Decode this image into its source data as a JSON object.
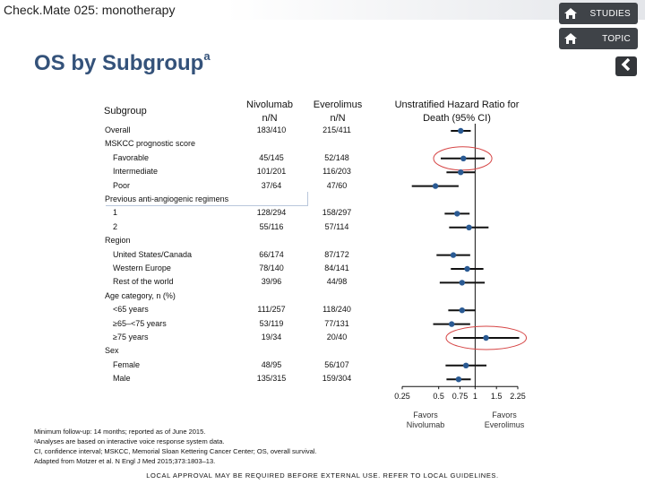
{
  "header": {
    "title": "Check.Mate 025: monotherapy"
  },
  "nav": {
    "studies": "STUDIES",
    "topic": "TOPIC"
  },
  "page": {
    "title": "OS by Subgroup",
    "title_sup": "a"
  },
  "columns": {
    "subgroup": "Subgroup",
    "nivo": "Nivolumab",
    "nivo_sub": "n/N",
    "eve": "Everolimus",
    "eve_sub": "n/N",
    "hr_title_1": "Unstratified Hazard Ratio for",
    "hr_title_2": "Death (95% CI)"
  },
  "chart_data": {
    "type": "forest",
    "x_scale": "log",
    "xlim": [
      0.25,
      2.25
    ],
    "x_ticks": [
      "0.25",
      "0.5",
      "0.75",
      "1",
      "1.5",
      "2.25"
    ],
    "reference_line": 1,
    "favors_left": "Favors Nivolumab",
    "favors_right": "Favors Everolimus",
    "marker_color": "#2a5a93",
    "highlight_color": "#d64545",
    "rows": [
      {
        "label": "Overall",
        "nivo": "183/410",
        "eve": "215/411",
        "hr": 0.76,
        "lo": 0.63,
        "hi": 0.92
      },
      {
        "label": "MSKCC prognostic score",
        "header": true
      },
      {
        "label": "Favorable",
        "nivo": "45/145",
        "eve": "52/148",
        "hr": 0.8,
        "lo": 0.52,
        "hi": 1.2,
        "highlight": true
      },
      {
        "label": "Intermediate",
        "nivo": "101/201",
        "eve": "116/203",
        "hr": 0.76,
        "lo": 0.58,
        "hi": 1.0
      },
      {
        "label": "Poor",
        "nivo": "37/64",
        "eve": "47/60",
        "hr": 0.47,
        "lo": 0.3,
        "hi": 0.73
      },
      {
        "label": "Previous anti-angiogenic regimens",
        "header": true
      },
      {
        "label": "1",
        "nivo": "128/294",
        "eve": "158/297",
        "hr": 0.71,
        "lo": 0.56,
        "hi": 0.9
      },
      {
        "label": "2",
        "nivo": "55/116",
        "eve": "57/114",
        "hr": 0.89,
        "lo": 0.61,
        "hi": 1.29
      },
      {
        "label": "Region",
        "header": true
      },
      {
        "label": "United States/Canada",
        "nivo": "66/174",
        "eve": "87/172",
        "hr": 0.66,
        "lo": 0.48,
        "hi": 0.91
      },
      {
        "label": "Western Europe",
        "nivo": "78/140",
        "eve": "84/141",
        "hr": 0.86,
        "lo": 0.63,
        "hi": 1.17
      },
      {
        "label": "Rest of the world",
        "nivo": "39/96",
        "eve": "44/98",
        "hr": 0.78,
        "lo": 0.51,
        "hi": 1.2
      },
      {
        "label": "Age category, n (%)",
        "header": true
      },
      {
        "label": "<65 years",
        "nivo": "111/257",
        "eve": "118/240",
        "hr": 0.78,
        "lo": 0.6,
        "hi": 1.01
      },
      {
        "label": "≥65–<75 years",
        "nivo": "53/119",
        "eve": "77/131",
        "hr": 0.64,
        "lo": 0.45,
        "hi": 0.91
      },
      {
        "label": "≥75 years",
        "nivo": "19/34",
        "eve": "20/40",
        "hr": 1.23,
        "lo": 0.66,
        "hi": 2.31,
        "highlight": true
      },
      {
        "label": "Sex",
        "header": true
      },
      {
        "label": "Female",
        "nivo": "48/95",
        "eve": "56/107",
        "hr": 0.84,
        "lo": 0.57,
        "hi": 1.24
      },
      {
        "label": "Male",
        "nivo": "135/315",
        "eve": "159/304",
        "hr": 0.73,
        "lo": 0.58,
        "hi": 0.92
      }
    ]
  },
  "footnotes": [
    "Minimum follow-up: 14 months; reported as of June 2015.",
    "ᵃAnalyses are based on interactive voice response system data.",
    "CI, confidence interval; MSKCC, Memorial Sloan Kettering Cancer Center; OS, overall survival.",
    "Adapted from Motzer et al. N Engl J Med 2015;373:1803–13."
  ],
  "bottom_note": "LOCAL APPROVAL MAY BE REQUIRED BEFORE EXTERNAL USE. REFER TO LOCAL GUIDELINES."
}
